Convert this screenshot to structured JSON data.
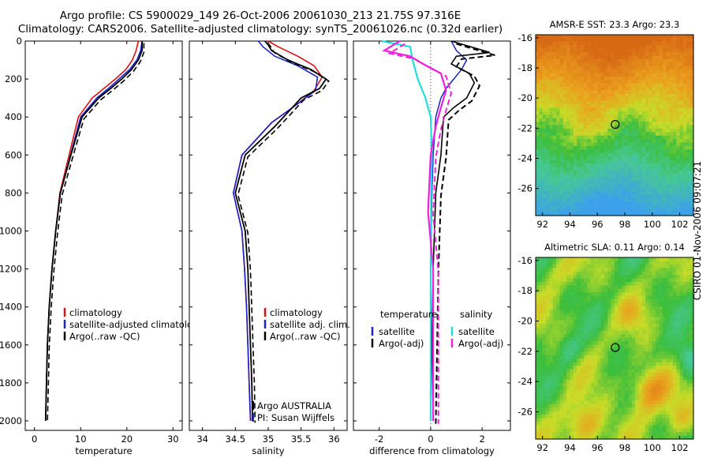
{
  "header": {
    "line1": "Argo profile: CS 5900029_149 26-Oct-2006 20061030_213 21.75S 97.316E",
    "line2": "Climatology: CARS2006. Satellite-adjusted climatology: synTS_20061026.nc (0.32d earlier)"
  },
  "credit": "CSIRO 01-Nov-2006 09:07:21",
  "colors": {
    "climatology": "#dd1111",
    "satellite": "#1a22cc",
    "argo": "#000000",
    "sal_satellite": "#22dddd",
    "sal_argo": "#ee22dd"
  },
  "chart_data": [
    {
      "type": "line",
      "xlabel": "temperature",
      "ylabel": "",
      "xlim": [
        -2,
        32
      ],
      "ylim": [
        2050,
        0
      ],
      "xticks": [
        0,
        10,
        20,
        30
      ],
      "yticks": [
        0,
        200,
        400,
        600,
        800,
        1000,
        1200,
        1400,
        1600,
        1800,
        2000
      ],
      "legend": [
        "climatology",
        "satellite-adjusted climatology",
        "Argo(..raw -QC)"
      ],
      "legend_shown": [
        "climatology",
        "satellite-adjusted climatolog",
        "Argo(..raw -QC)"
      ],
      "series": [
        {
          "name": "climatology",
          "x": [
            22.5,
            22.0,
            21.2,
            19.8,
            17.5,
            15.0,
            12.5,
            9.5,
            7.5,
            5.5,
            4.6,
            3.8,
            3.2,
            2.8,
            2.6,
            2.4
          ],
          "y": [
            0,
            50,
            100,
            150,
            200,
            250,
            300,
            400,
            600,
            800,
            1000,
            1200,
            1400,
            1600,
            1800,
            2000
          ]
        },
        {
          "name": "satellite-adjusted climatology",
          "x": [
            23.3,
            23.0,
            22.2,
            20.6,
            18.3,
            16.0,
            13.5,
            10.0,
            7.8,
            5.6,
            4.6,
            3.8,
            3.2,
            2.8,
            2.6,
            2.4
          ],
          "y": [
            0,
            50,
            100,
            150,
            200,
            250,
            300,
            400,
            600,
            800,
            1000,
            1200,
            1400,
            1600,
            1800,
            2000
          ]
        },
        {
          "name": "Argo(..raw -QC)",
          "x": [
            23.3,
            23.3,
            22.5,
            21.0,
            18.9,
            16.5,
            13.9,
            10.3,
            7.9,
            5.6,
            4.6,
            3.8,
            3.2,
            2.8,
            2.6,
            2.4
          ],
          "y": [
            0,
            50,
            100,
            150,
            200,
            250,
            300,
            400,
            600,
            800,
            1000,
            1200,
            1400,
            1600,
            1800,
            2000
          ]
        }
      ]
    },
    {
      "type": "line",
      "xlabel": "salinity",
      "xlim": [
        33.8,
        36.2
      ],
      "ylim": [
        2050,
        0
      ],
      "xticks": [
        34,
        34.5,
        35,
        35.5,
        36
      ],
      "legend": [
        "climatology",
        "satellite adj. clim.",
        "Argo(..raw -QC)"
      ],
      "annotation": [
        "Argo AUSTRALIA",
        "PI: Susan Wijffels"
      ],
      "series": [
        {
          "name": "climatology",
          "x": [
            35.0,
            35.15,
            35.45,
            35.7,
            35.82,
            35.7,
            35.45,
            35.05,
            34.6,
            34.47,
            34.6,
            34.64,
            34.67,
            34.69,
            34.71,
            34.73
          ],
          "y": [
            0,
            30,
            80,
            130,
            190,
            260,
            330,
            430,
            600,
            800,
            1000,
            1200,
            1400,
            1600,
            1800,
            2000
          ]
        },
        {
          "name": "satellite adj. clim.",
          "x": [
            34.85,
            34.92,
            35.1,
            35.45,
            35.75,
            35.72,
            35.45,
            35.05,
            34.6,
            34.47,
            34.6,
            34.64,
            34.67,
            34.69,
            34.71,
            34.73
          ],
          "y": [
            0,
            30,
            80,
            130,
            190,
            260,
            330,
            430,
            600,
            800,
            1000,
            1200,
            1400,
            1600,
            1800,
            2000
          ]
        },
        {
          "name": "Argo(..raw -QC)",
          "x": [
            34.95,
            35.0,
            35.05,
            35.3,
            35.65,
            35.88,
            35.78,
            35.5,
            35.1,
            34.65,
            34.5,
            34.65,
            34.69,
            34.71,
            34.73,
            34.75,
            34.76
          ],
          "y": [
            0,
            20,
            50,
            100,
            150,
            200,
            250,
            300,
            450,
            600,
            800,
            1000,
            1200,
            1400,
            1600,
            1800,
            2000
          ]
        }
      ]
    },
    {
      "type": "line",
      "xlabel": "difference from climatology",
      "xlim": [
        -3,
        3.1
      ],
      "ylim": [
        2050,
        0
      ],
      "xticks": [
        -2,
        0,
        2
      ],
      "legend_groups": [
        {
          "title": "temperature",
          "items": [
            "satellite",
            "Argo(-adj)"
          ]
        },
        {
          "title": "salinity",
          "items": [
            "satellite",
            "Argo(-adj)"
          ]
        }
      ],
      "series": [
        {
          "name": "temperature satellite",
          "x": [
            0.8,
            1.0,
            1.4,
            1.2,
            0.9,
            0.6,
            0.4,
            0.2,
            0.1,
            0.05,
            0.0,
            0.0
          ],
          "y": [
            0,
            50,
            100,
            150,
            200,
            250,
            300,
            400,
            600,
            800,
            1200,
            2000
          ]
        },
        {
          "name": "temperature Argo(-adj)",
          "x": [
            0.8,
            2.3,
            1.0,
            0.8,
            1.5,
            1.7,
            1.4,
            0.9,
            0.5,
            0.4,
            0.2,
            0.1,
            0.0
          ],
          "y": [
            0,
            60,
            80,
            120,
            170,
            220,
            300,
            350,
            400,
            600,
            800,
            1200,
            2000
          ]
        },
        {
          "name": "salinity satellite",
          "x": [
            -1.9,
            -0.8,
            -0.7,
            -0.5,
            -0.2,
            0.0,
            0.05,
            0.02,
            0.0,
            0.0
          ],
          "y": [
            0,
            30,
            100,
            200,
            300,
            400,
            600,
            800,
            1200,
            2000
          ]
        },
        {
          "name": "salinity Argo(-adj)",
          "x": [
            -1.2,
            -1.8,
            -0.8,
            -0.3,
            0.4,
            0.6,
            0.4,
            0.2,
            0.0,
            -0.1,
            0.1,
            0.1
          ],
          "y": [
            0,
            50,
            80,
            120,
            170,
            260,
            350,
            450,
            600,
            900,
            1200,
            2000
          ]
        }
      ]
    },
    {
      "type": "heatmap",
      "title": "AMSR-E SST: 23.3 Argo: 23.3",
      "xlim": [
        91.5,
        103
      ],
      "ylim": [
        -27.8,
        -15.8
      ],
      "xticks": [
        92,
        94,
        96,
        98,
        100,
        102
      ],
      "yticks": [
        -16,
        -18,
        -20,
        -22,
        -24,
        -26
      ],
      "marker": {
        "lon": 97.3,
        "lat": -21.75
      }
    },
    {
      "type": "heatmap",
      "title": "Altimetric SLA: 0.11 Argo: 0.14",
      "xlim": [
        91.5,
        103
      ],
      "ylim": [
        -27.8,
        -15.8
      ],
      "xticks": [
        92,
        94,
        96,
        98,
        100,
        102
      ],
      "yticks": [
        -16,
        -18,
        -20,
        -22,
        -24,
        -26
      ],
      "marker": {
        "lon": 97.3,
        "lat": -21.75
      }
    }
  ]
}
